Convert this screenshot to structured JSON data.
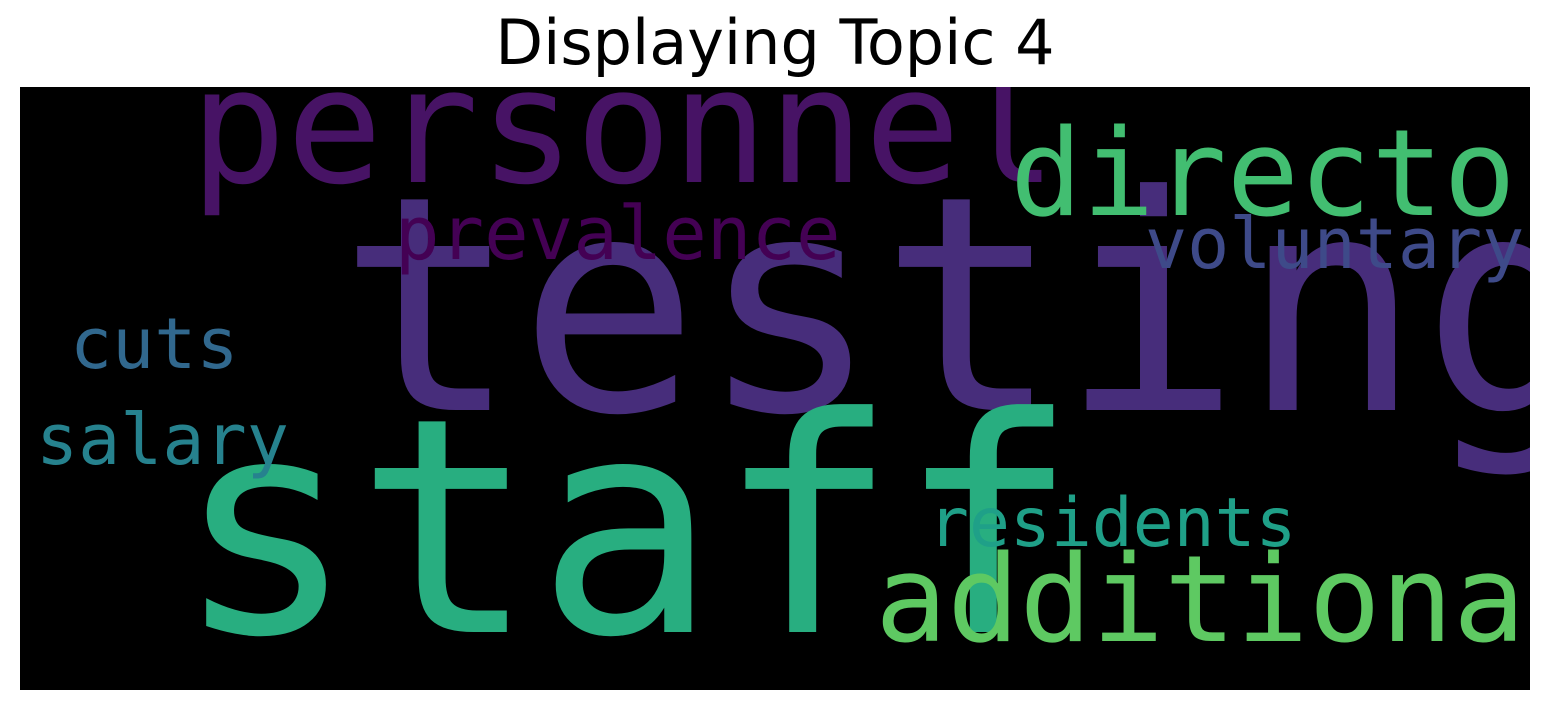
{
  "title": "Displaying Topic 4",
  "cloud": {
    "background": "#000000",
    "words": [
      {
        "text": "testing",
        "color": "#472d7b"
      },
      {
        "text": "staff",
        "color": "#28ae80"
      },
      {
        "text": "personnel",
        "color": "#471365"
      },
      {
        "text": "director",
        "color": "#42be71"
      },
      {
        "text": "additional",
        "color": "#5ec962"
      },
      {
        "text": "prevalence",
        "color": "#440154"
      },
      {
        "text": "voluntary",
        "color": "#3e4a89"
      },
      {
        "text": "cuts",
        "color": "#31688e"
      },
      {
        "text": "salary",
        "color": "#26828e"
      },
      {
        "text": "residents",
        "color": "#1fa088"
      }
    ]
  }
}
